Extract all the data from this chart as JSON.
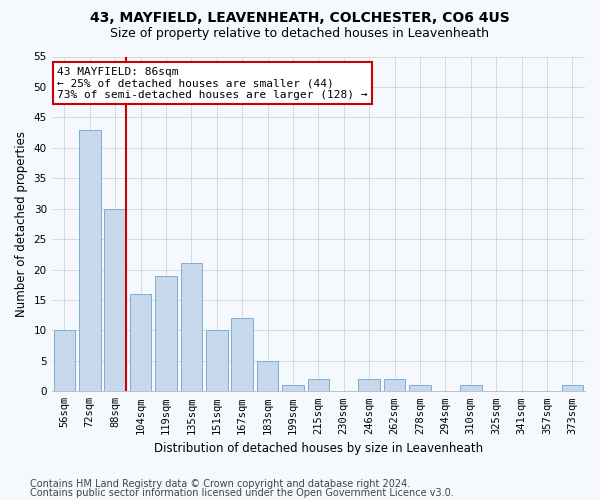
{
  "title1": "43, MAYFIELD, LEAVENHEATH, COLCHESTER, CO6 4US",
  "title2": "Size of property relative to detached houses in Leavenheath",
  "xlabel": "Distribution of detached houses by size in Leavenheath",
  "ylabel": "Number of detached properties",
  "categories": [
    "56sqm",
    "72sqm",
    "88sqm",
    "104sqm",
    "119sqm",
    "135sqm",
    "151sqm",
    "167sqm",
    "183sqm",
    "199sqm",
    "215sqm",
    "230sqm",
    "246sqm",
    "262sqm",
    "278sqm",
    "294sqm",
    "310sqm",
    "325sqm",
    "341sqm",
    "357sqm",
    "373sqm"
  ],
  "values": [
    10,
    43,
    30,
    16,
    19,
    21,
    10,
    12,
    5,
    1,
    2,
    0,
    2,
    2,
    1,
    0,
    1,
    0,
    0,
    0,
    1
  ],
  "bar_color": "#c8d8ec",
  "bar_edge_color": "#7aafd4",
  "red_line_color": "#cc0000",
  "annotation_text": "43 MAYFIELD: 86sqm\n← 25% of detached houses are smaller (44)\n73% of semi-detached houses are larger (128) →",
  "annotation_box_color": "#ffffff",
  "annotation_box_edge": "#cc0000",
  "ylim": [
    0,
    55
  ],
  "yticks": [
    0,
    5,
    10,
    15,
    20,
    25,
    30,
    35,
    40,
    45,
    50,
    55
  ],
  "footer1": "Contains HM Land Registry data © Crown copyright and database right 2024.",
  "footer2": "Contains public sector information licensed under the Open Government Licence v3.0.",
  "bg_color": "#f5f8fc",
  "plot_bg_color": "#f5f8fc",
  "grid_color": "#cccccc",
  "title1_fontsize": 10,
  "title2_fontsize": 9,
  "xlabel_fontsize": 8.5,
  "ylabel_fontsize": 8.5,
  "tick_fontsize": 7.5,
  "footer_fontsize": 7,
  "ann_fontsize": 8
}
